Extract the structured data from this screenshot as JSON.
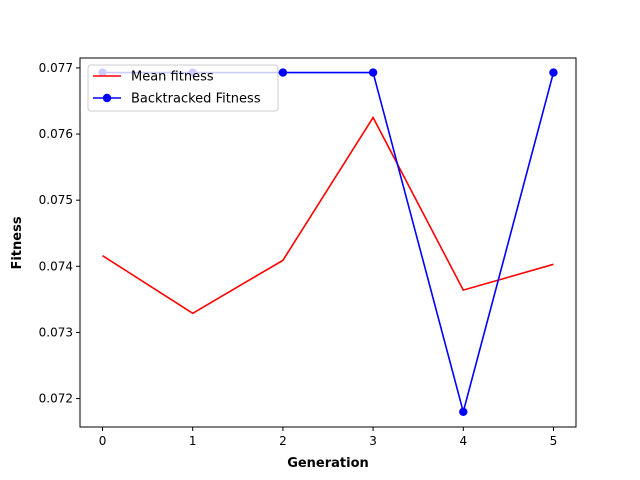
{
  "chart_data": {
    "type": "line",
    "title": "",
    "xlabel": "Generation",
    "ylabel": "Fitness",
    "x": [
      0,
      1,
      2,
      3,
      4,
      5
    ],
    "xlim": [
      -0.25,
      5.25
    ],
    "ylim": [
      0.07157,
      0.07715
    ],
    "xticks": [
      "0",
      "1",
      "2",
      "3",
      "4",
      "5"
    ],
    "yticks": [
      "0.072",
      "0.073",
      "0.074",
      "0.075",
      "0.076",
      "0.077"
    ],
    "grid": false,
    "legend": "top-left",
    "series": [
      {
        "name": "Mean fitness",
        "color": "#ff0000",
        "marker": "none",
        "values": [
          0.07416,
          0.07329,
          0.07409,
          0.07625,
          0.07364,
          0.07403
        ]
      },
      {
        "name": "Backtracked Fitness",
        "color": "#0000ff",
        "marker": "circle",
        "values": [
          0.07693,
          0.07693,
          0.07693,
          0.07693,
          0.0718,
          0.07693
        ]
      }
    ]
  }
}
